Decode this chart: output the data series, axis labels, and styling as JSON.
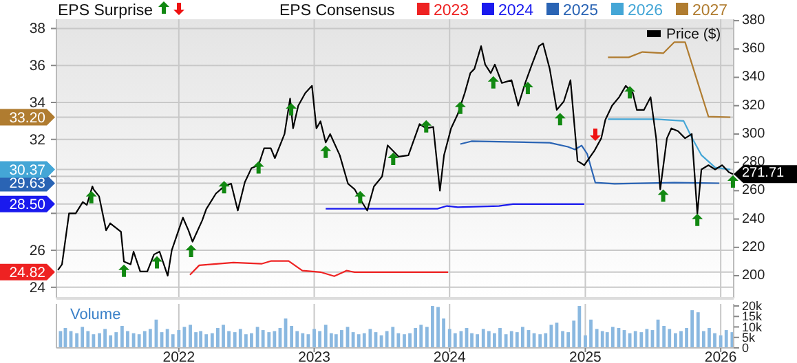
{
  "chart_data": [
    {
      "type": "line",
      "legend_title": "EPS Consensus",
      "annotations": [
        "EPS Surprise"
      ],
      "legend": "top",
      "grid": true,
      "tick_labels": "y",
      "xlim": [
        "2021-02-05",
        "2026-02-05"
      ],
      "xticks": [
        "2022",
        "2023",
        "2024",
        "2025",
        "2026"
      ],
      "ylim": [
        23.4,
        38.5
      ],
      "yticks": [
        24,
        26,
        {
          "value": 28,
          "label": null
        },
        {
          "value": 30,
          "label": null
        },
        32,
        34,
        36,
        38,
        {
          "value": 24.82,
          "label": "24.82"
        },
        {
          "value": 28.5,
          "label": "28.50"
        },
        {
          "value": 29.63,
          "label": "29.63"
        },
        {
          "value": 30.37,
          "label": "30.37"
        },
        {
          "value": 33.2,
          "label": "33.20"
        }
      ],
      "y2lim": [
        184,
        381
      ],
      "y2ticks": [
        200,
        220,
        240,
        260,
        280,
        300,
        320,
        340,
        360,
        380,
        271.71
      ],
      "series": [
        {
          "name": "2023",
          "color": "#ee2222",
          "axis": "y",
          "x": [
            "2022-01-31",
            "2022-02-25",
            "2022-05-28",
            "2022-08-12",
            "2022-09-06",
            "2022-10-24",
            "2022-11-30",
            "2023-01-18",
            "2023-02-24",
            "2023-03-29",
            "2023-04-20",
            "2023-12-28"
          ],
          "values": [
            24.67,
            25.19,
            25.34,
            25.27,
            25.42,
            25.42,
            24.9,
            24.82,
            24.6,
            24.9,
            24.82,
            24.82
          ]
        },
        {
          "name": "2024",
          "color": "#1a1aee",
          "axis": "y",
          "x": [
            "2023-02-01",
            "2023-11-29",
            "2023-12-25",
            "2024-01-23",
            "2024-05-13",
            "2024-06-20",
            "2024-12-29"
          ],
          "values": [
            28.25,
            28.25,
            28.4,
            28.33,
            28.4,
            28.5,
            28.5
          ]
        },
        {
          "name": "2025",
          "color": "#2a64b4",
          "axis": "y",
          "x": [
            "2024-01-30",
            "2024-02-29",
            "2024-09-27",
            "2024-11-15",
            "2024-12-04",
            "2024-12-22",
            "2025-01-06",
            "2025-01-28",
            "2025-03-21",
            "2025-08-29",
            "2025-12-28"
          ],
          "values": [
            31.75,
            31.9,
            31.82,
            31.6,
            31.45,
            31.67,
            31.22,
            29.66,
            29.6,
            29.66,
            29.63
          ]
        },
        {
          "name": "2026",
          "color": "#44a6d6",
          "axis": "y",
          "x": [
            "2025-03-03",
            "2025-07-11",
            "2025-09-23",
            "2025-10-15",
            "2025-11-10",
            "2025-12-17",
            "2026-01-27"
          ],
          "values": [
            33.09,
            33.09,
            33.0,
            32.1,
            31.15,
            30.48,
            30.37
          ]
        },
        {
          "name": "2027",
          "color": "#b07c30",
          "axis": "y",
          "x": [
            "2025-03-03",
            "2025-04-28",
            "2025-06-04",
            "2025-07-30",
            "2025-08-29",
            "2025-09-27",
            "2025-11-29",
            "2026-01-27"
          ],
          "values": [
            36.44,
            36.44,
            36.73,
            36.66,
            37.26,
            37.26,
            33.23,
            33.2
          ]
        },
        {
          "name": "Price ($)",
          "color": "#000000",
          "axis": "y2",
          "x": [
            "2021-02-09",
            "2021-02-20",
            "2021-03-11",
            "2021-03-29",
            "2021-04-17",
            "2021-04-28",
            "2021-05-13",
            "2021-05-16",
            "2021-05-31",
            "2021-06-19",
            "2021-06-30",
            "2021-07-29",
            "2021-08-06",
            "2021-08-24",
            "2021-09-01",
            "2021-09-19",
            "2021-10-08",
            "2021-10-26",
            "2021-11-10",
            "2021-12-02",
            "2021-12-13",
            "2022-01-12",
            "2022-01-27",
            "2022-02-07",
            "2022-03-05",
            "2022-03-16",
            "2022-04-11",
            "2022-05-03",
            "2022-05-22",
            "2022-06-09",
            "2022-06-28",
            "2022-07-16",
            "2022-08-04",
            "2022-08-19",
            "2022-09-06",
            "2022-09-17",
            "2022-10-13",
            "2022-10-28",
            "2022-11-05",
            "2022-11-19",
            "2022-12-08",
            "2022-12-26",
            "2023-01-07",
            "2023-01-18",
            "2023-02-01",
            "2023-02-13",
            "2023-03-11",
            "2023-04-02",
            "2023-04-20",
            "2023-05-05",
            "2023-05-24",
            "2023-06-11",
            "2023-07-03",
            "2023-07-18",
            "2023-08-17",
            "2023-09-12",
            "2023-10-12",
            "2023-10-30",
            "2023-11-18",
            "2023-12-06",
            "2023-12-17",
            "2024-01-05",
            "2024-01-23",
            "2024-02-11",
            "2024-02-26",
            "2024-03-08",
            "2024-03-26",
            "2024-04-06",
            "2024-04-21",
            "2024-05-02",
            "2024-05-21",
            "2024-06-16",
            "2024-07-04",
            "2024-07-23",
            "2024-08-10",
            "2024-08-29",
            "2024-09-09",
            "2024-09-27",
            "2024-10-16",
            "2024-11-04",
            "2024-11-22",
            "2024-12-11",
            "2024-12-29",
            "2025-01-25",
            "2025-02-13",
            "2025-02-24",
            "2025-03-14",
            "2025-04-02",
            "2025-04-20",
            "2025-05-09",
            "2025-05-20",
            "2025-06-08",
            "2025-06-26",
            "2025-07-11",
            "2025-07-22",
            "2025-08-09",
            "2025-08-21",
            "2025-09-08",
            "2025-09-27",
            "2025-10-15",
            "2025-10-30",
            "2025-11-10",
            "2025-11-29",
            "2025-12-17",
            "2026-01-05",
            "2026-01-23",
            "2026-02-03"
          ],
          "values": [
            204,
            208,
            244,
            244,
            252,
            250,
            263,
            261,
            256,
            232,
            237,
            231,
            210,
            208,
            217,
            203,
            203,
            215,
            217,
            200,
            218,
            241,
            232,
            224,
            239,
            247,
            258,
            263,
            265,
            246,
            266,
            276,
            278,
            290,
            290,
            283,
            300,
            325,
            304,
            320,
            329,
            334,
            304,
            309,
            294,
            300,
            285,
            265,
            261,
            254,
            246,
            263,
            270,
            292,
            284,
            285,
            307,
            304,
            305,
            260,
            285,
            304,
            314,
            329,
            343,
            346,
            362,
            349,
            343,
            349,
            336,
            338,
            320,
            336,
            349,
            362,
            364,
            346,
            317,
            323,
            338,
            281,
            278,
            288,
            297,
            310,
            320,
            326,
            334,
            329,
            317,
            317,
            326,
            297,
            261,
            297,
            304,
            302,
            297,
            300,
            244,
            275,
            278,
            275,
            278,
            273,
            271.71
          ]
        },
        {
          "type": "scatter",
          "marker": "triangle",
          "color": "#118811",
          "axis": "y2",
          "x": [
            "2021-05-10",
            "2021-08-06",
            "2021-11-03",
            "2022-02-03",
            "2022-05-03",
            "2022-08-04",
            "2022-10-31",
            "2023-02-01",
            "2023-05-05",
            "2023-08-02",
            "2023-10-30",
            "2024-01-30",
            "2024-04-28",
            "2024-07-30",
            "2024-10-25",
            "2025-05-01",
            "2025-07-30",
            "2025-10-30",
            "2026-02-03"
          ],
          "values": [
            255,
            203,
            209,
            217,
            262,
            276,
            317,
            287,
            255,
            282,
            305,
            318,
            336,
            332,
            310,
            329,
            256,
            239,
            266
          ]
        },
        {
          "type": "scatter",
          "marker": "triangle",
          "color": "#ee1111",
          "axis": "y2",
          "x": [
            "2025-01-28"
          ],
          "values": [
            300
          ]
        }
      ]
    },
    {
      "type": "bar",
      "title": "Volume",
      "color": "#8ab8e0",
      "grid": "x",
      "xlim": [
        "2021-02-05",
        "2026-02-05"
      ],
      "xticks": [
        "2022",
        "2023",
        "2024",
        "2025",
        "2026"
      ],
      "ylim": [
        0,
        21000
      ],
      "yticks": [
        0,
        {
          "value": 5000,
          "label": "5k"
        },
        {
          "value": 10000,
          "label": "10k"
        },
        {
          "value": 15000,
          "label": "15k"
        },
        {
          "value": 20000,
          "label": "20k"
        }
      ],
      "x": [
        "2021-02-16",
        "2021-03-01",
        "2021-03-16",
        "2021-04-01",
        "2021-04-16",
        "2021-05-01",
        "2021-05-16",
        "2021-06-01",
        "2021-06-16",
        "2021-07-01",
        "2021-07-16",
        "2021-08-01",
        "2021-08-16",
        "2021-09-01",
        "2021-09-16",
        "2021-10-01",
        "2021-10-16",
        "2021-11-01",
        "2021-11-16",
        "2021-12-01",
        "2021-12-16",
        "2022-01-01",
        "2022-01-16",
        "2022-02-01",
        "2022-02-16",
        "2022-03-01",
        "2022-03-16",
        "2022-04-01",
        "2022-04-16",
        "2022-05-01",
        "2022-05-16",
        "2022-06-01",
        "2022-06-16",
        "2022-07-01",
        "2022-07-16",
        "2022-08-01",
        "2022-08-16",
        "2022-09-01",
        "2022-09-16",
        "2022-10-01",
        "2022-10-16",
        "2022-11-01",
        "2022-11-16",
        "2022-12-01",
        "2022-12-16",
        "2023-01-01",
        "2023-01-16",
        "2023-02-01",
        "2023-02-16",
        "2023-03-01",
        "2023-03-16",
        "2023-04-01",
        "2023-04-16",
        "2023-05-01",
        "2023-05-16",
        "2023-06-01",
        "2023-06-16",
        "2023-07-01",
        "2023-07-16",
        "2023-08-01",
        "2023-08-16",
        "2023-09-01",
        "2023-09-16",
        "2023-10-01",
        "2023-10-16",
        "2023-11-01",
        "2023-11-16",
        "2023-12-01",
        "2023-12-16",
        "2024-01-01",
        "2024-01-16",
        "2024-02-01",
        "2024-02-16",
        "2024-03-01",
        "2024-03-16",
        "2024-04-01",
        "2024-04-16",
        "2024-05-01",
        "2024-05-16",
        "2024-06-01",
        "2024-06-16",
        "2024-07-01",
        "2024-07-16",
        "2024-08-01",
        "2024-08-16",
        "2024-09-01",
        "2024-09-16",
        "2024-10-01",
        "2024-10-16",
        "2024-11-01",
        "2024-11-16",
        "2024-12-01",
        "2024-12-16",
        "2025-01-01",
        "2025-01-16",
        "2025-02-01",
        "2025-02-16",
        "2025-03-01",
        "2025-03-16",
        "2025-04-01",
        "2025-04-16",
        "2025-05-01",
        "2025-05-16",
        "2025-06-01",
        "2025-06-16",
        "2025-07-01",
        "2025-07-16",
        "2025-08-01",
        "2025-08-16",
        "2025-09-01",
        "2025-09-16",
        "2025-10-01",
        "2025-10-16",
        "2025-11-01",
        "2025-11-16",
        "2025-12-01",
        "2025-12-16",
        "2026-01-01",
        "2026-01-16",
        "2026-02-01"
      ],
      "values": [
        8000,
        9500,
        8000,
        7000,
        10000,
        8000,
        6500,
        7000,
        9000,
        6000,
        7500,
        10500,
        8000,
        7000,
        6500,
        8000,
        9000,
        13500,
        7500,
        9000,
        6500,
        8500,
        10000,
        11000,
        7500,
        8000,
        6500,
        7000,
        9500,
        11000,
        8000,
        7500,
        9000,
        6500,
        7000,
        10000,
        8500,
        7500,
        8000,
        9500,
        14000,
        10500,
        8000,
        7000,
        6500,
        9000,
        8000,
        11000,
        7000,
        6500,
        8500,
        10000,
        7500,
        6500,
        7000,
        9000,
        7500,
        6000,
        8000,
        10000,
        7000,
        6500,
        7000,
        9500,
        11000,
        10000,
        20000,
        19500,
        14000,
        9000,
        7000,
        8000,
        9500,
        7000,
        6500,
        9000,
        8000,
        7000,
        9500,
        6500,
        8000,
        7500,
        10000,
        8500,
        7000,
        6500,
        7000,
        11000,
        12000,
        8000,
        7500,
        13000,
        20000,
        6000,
        13500,
        9000,
        8000,
        7500,
        10000,
        9500,
        8500,
        7000,
        8000,
        7500,
        9000,
        8500,
        13500,
        10500,
        9000,
        7000,
        8000,
        9500,
        18000,
        17000,
        8000,
        9500,
        7000,
        6000,
        8500,
        7500
      ]
    }
  ]
}
